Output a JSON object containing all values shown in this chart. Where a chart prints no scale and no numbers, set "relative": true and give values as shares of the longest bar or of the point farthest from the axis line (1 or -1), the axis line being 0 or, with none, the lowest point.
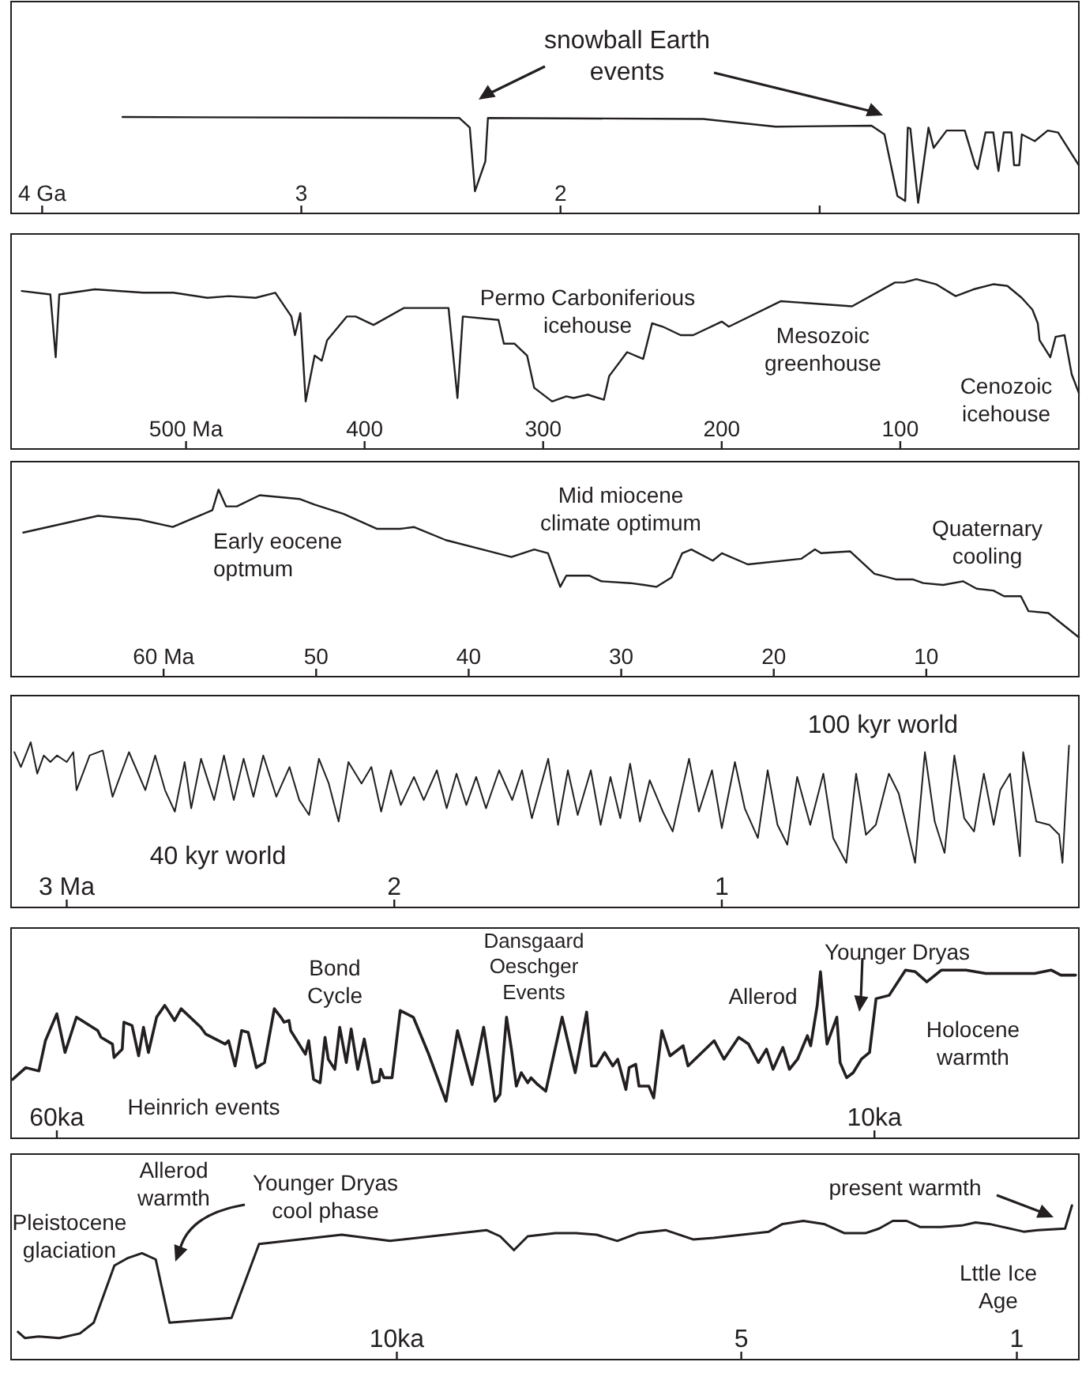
{
  "chart_data": [
    {
      "type": "line",
      "relative": true,
      "xlim": [
        4.12,
        0
      ],
      "xticks": [
        {
          "value": 4,
          "label": "4 Ga"
        },
        3,
        2,
        {
          "value": 1,
          "label": null
        }
      ],
      "annotations": [
        "snowball Earth events"
      ],
      "x": [
        3.69,
        2.39,
        2.35,
        2.33,
        2.29,
        2.28,
        1.45,
        1.17,
        0.8,
        0.75,
        0.7,
        0.67,
        0.66,
        0.65,
        0.62,
        0.58,
        0.56,
        0.51,
        0.44,
        0.4,
        0.39,
        0.36,
        0.33,
        0.31,
        0.29,
        0.26,
        0.25,
        0.23,
        0.22,
        0.17,
        0.12,
        0.08,
        0.0
      ],
      "series": [
        {
          "color": "#231f20",
          "values": [
            1.0,
            0.99,
            0.89,
            0.23,
            0.54,
            0.99,
            0.98,
            0.9,
            0.91,
            0.82,
            0.18,
            0.13,
            0.89,
            0.88,
            0.11,
            0.89,
            0.68,
            0.86,
            0.86,
            0.5,
            0.46,
            0.84,
            0.84,
            0.44,
            0.84,
            0.84,
            0.5,
            0.5,
            0.82,
            0.75,
            0.86,
            0.84,
            0.5
          ]
        }
      ]
    },
    {
      "type": "line",
      "relative": true,
      "xlim": [
        598,
        0
      ],
      "xticks": [
        {
          "value": 500,
          "label": "500 Ma"
        },
        400,
        300,
        200,
        100
      ],
      "annotations": [
        "Permo Carboniferious icehouse",
        "Mesozoic greenhouse",
        "Cenozoic icehouse"
      ],
      "x": [
        592,
        576,
        573,
        571,
        551,
        524,
        507,
        488,
        476,
        461,
        450,
        441,
        439,
        436,
        433,
        428,
        424,
        421,
        410,
        405,
        395,
        378,
        353,
        348,
        345,
        325,
        322,
        316,
        309,
        305,
        295,
        287,
        283,
        275,
        266,
        263,
        253,
        244,
        239,
        233,
        223,
        216,
        200,
        196,
        167,
        127,
        103,
        98,
        91,
        80,
        69,
        59,
        48,
        40,
        32,
        26,
        23,
        22,
        16,
        13,
        8,
        4,
        0
      ],
      "series": [
        {
          "color": "#231f20",
          "values": [
            0.93,
            0.91,
            0.54,
            0.91,
            0.94,
            0.92,
            0.92,
            0.89,
            0.9,
            0.89,
            0.92,
            0.78,
            0.67,
            0.8,
            0.28,
            0.55,
            0.52,
            0.64,
            0.78,
            0.78,
            0.73,
            0.83,
            0.83,
            0.3,
            0.78,
            0.76,
            0.62,
            0.62,
            0.55,
            0.36,
            0.28,
            0.31,
            0.3,
            0.32,
            0.29,
            0.43,
            0.57,
            0.53,
            0.74,
            0.72,
            0.67,
            0.67,
            0.75,
            0.72,
            0.87,
            0.84,
            0.98,
            0.98,
            1.0,
            0.97,
            0.9,
            0.94,
            0.97,
            0.96,
            0.89,
            0.82,
            0.74,
            0.64,
            0.54,
            0.66,
            0.67,
            0.44,
            0.33
          ]
        }
      ]
    },
    {
      "type": "line",
      "relative": true,
      "xlim": [
        70,
        0
      ],
      "xticks": [
        {
          "value": 60,
          "label": "60 Ma"
        },
        50,
        40,
        30,
        20,
        10
      ],
      "annotations": [
        "Early eocene optmum",
        "Mid miocene climate optimum",
        "Quaternary cooling"
      ],
      "x": [
        69.2,
        64.3,
        61.6,
        59.4,
        56.8,
        56.4,
        55.9,
        55.2,
        53.7,
        51.1,
        50.1,
        48.2,
        46.0,
        44.5,
        43.6,
        41.5,
        39.1,
        37.2,
        35.7,
        34.8,
        34.0,
        33.6,
        32.1,
        31.3,
        29.4,
        28.5,
        27.7,
        26.7,
        26.0,
        25.4,
        24.0,
        23.4,
        21.7,
        18.2,
        17.3,
        16.9,
        15.0,
        13.4,
        12.0,
        10.9,
        10.2,
        8.9,
        7.6,
        6.7,
        5.6,
        4.9,
        3.8,
        3.3,
        2.0,
        0.0
      ],
      "series": [
        {
          "color": "#231f20",
          "values": [
            0.77,
            0.86,
            0.84,
            0.8,
            0.89,
            1.0,
            0.91,
            0.91,
            0.97,
            0.95,
            0.92,
            0.87,
            0.79,
            0.79,
            0.8,
            0.73,
            0.68,
            0.64,
            0.68,
            0.66,
            0.48,
            0.54,
            0.54,
            0.51,
            0.5,
            0.49,
            0.48,
            0.53,
            0.66,
            0.68,
            0.62,
            0.66,
            0.6,
            0.63,
            0.68,
            0.66,
            0.67,
            0.55,
            0.52,
            0.52,
            0.5,
            0.49,
            0.51,
            0.47,
            0.46,
            0.43,
            0.43,
            0.35,
            0.34,
            0.21
          ]
        }
      ]
    },
    {
      "type": "line",
      "relative": true,
      "xlim": [
        3.17,
        -0.09
      ],
      "xticks": [
        {
          "value": 3,
          "label": "3 Ma"
        },
        2,
        1
      ],
      "annotations": [
        "100 kyr world",
        "40 kyr world"
      ],
      "x": [
        3.16,
        3.14,
        3.11,
        3.09,
        3.07,
        3.05,
        3.03,
        3.0,
        2.98,
        2.97,
        2.93,
        2.89,
        2.86,
        2.81,
        2.76,
        2.73,
        2.7,
        2.67,
        2.64,
        2.62,
        2.59,
        2.55,
        2.52,
        2.49,
        2.46,
        2.43,
        2.4,
        2.36,
        2.32,
        2.29,
        2.26,
        2.23,
        2.2,
        2.17,
        2.14,
        2.1,
        2.07,
        2.04,
        2.01,
        1.98,
        1.94,
        1.91,
        1.87,
        1.84,
        1.81,
        1.78,
        1.75,
        1.72,
        1.68,
        1.64,
        1.61,
        1.58,
        1.53,
        1.5,
        1.47,
        1.44,
        1.4,
        1.37,
        1.34,
        1.31,
        1.28,
        1.25,
        1.22,
        1.18,
        1.15,
        1.1,
        1.07,
        1.03,
        1.0,
        0.96,
        0.93,
        0.89,
        0.86,
        0.83,
        0.8,
        0.77,
        0.73,
        0.69,
        0.66,
        0.62,
        0.59,
        0.56,
        0.53,
        0.49,
        0.46,
        0.41,
        0.38,
        0.35,
        0.32,
        0.29,
        0.26,
        0.23,
        0.2,
        0.17,
        0.15,
        0.12,
        0.09,
        0.08,
        0.04,
        0.0,
        -0.03,
        -0.04,
        -0.06
      ],
      "series": [
        {
          "color": "#231f20",
          "values": [
            0.94,
            0.85,
            1.0,
            0.81,
            0.92,
            0.88,
            0.92,
            0.88,
            0.94,
            0.71,
            0.92,
            0.95,
            0.67,
            0.94,
            0.71,
            0.92,
            0.71,
            0.58,
            0.88,
            0.6,
            0.9,
            0.65,
            0.92,
            0.65,
            0.9,
            0.67,
            0.92,
            0.67,
            0.85,
            0.65,
            0.56,
            0.9,
            0.75,
            0.52,
            0.88,
            0.75,
            0.85,
            0.58,
            0.83,
            0.62,
            0.79,
            0.65,
            0.83,
            0.6,
            0.81,
            0.62,
            0.79,
            0.6,
            0.83,
            0.65,
            0.83,
            0.54,
            0.9,
            0.5,
            0.83,
            0.56,
            0.83,
            0.5,
            0.79,
            0.54,
            0.87,
            0.52,
            0.77,
            0.58,
            0.46,
            0.9,
            0.58,
            0.83,
            0.48,
            0.88,
            0.6,
            0.42,
            0.83,
            0.5,
            0.38,
            0.79,
            0.5,
            0.81,
            0.42,
            0.27,
            0.81,
            0.44,
            0.5,
            0.81,
            0.69,
            0.27,
            0.94,
            0.52,
            0.33,
            0.92,
            0.54,
            0.46,
            0.81,
            0.5,
            0.71,
            0.81,
            0.31,
            0.94,
            0.52,
            0.5,
            0.44,
            0.27,
            0.98
          ]
        }
      ]
    },
    {
      "type": "line",
      "relative": true,
      "xlim": [
        62.8,
        -2.5
      ],
      "xticks": [
        {
          "value": 60,
          "label": "60ka"
        },
        {
          "value": 10,
          "label": "10ka"
        }
      ],
      "annotations": [
        "Bond Cycle",
        "Dansgaard Oeschger Events",
        "Allerod",
        "Younger Dryas",
        "Heinrich events",
        "Holocene warmth"
      ],
      "x": [
        62.7,
        61.9,
        61.1,
        60.7,
        60.0,
        59.5,
        58.8,
        57.5,
        57.3,
        56.6,
        56.5,
        56.0,
        55.9,
        55.4,
        55.0,
        54.7,
        54.4,
        53.9,
        53.4,
        52.8,
        52.4,
        51.2,
        50.9,
        49.7,
        49.5,
        49.1,
        48.7,
        48.3,
        47.8,
        47.3,
        46.7,
        46.3,
        46.1,
        45.8,
        45.7,
        44.8,
        44.6,
        44.3,
        43.9,
        43.6,
        43.4,
        43.0,
        42.7,
        42.3,
        42.0,
        41.6,
        41.2,
        40.7,
        40.3,
        40.2,
        40.0,
        39.5,
        39.0,
        38.2,
        37.3,
        36.2,
        35.5,
        34.6,
        33.9,
        33.2,
        32.9,
        32.5,
        32.2,
        31.9,
        31.6,
        31.2,
        31.0,
        30.6,
        30.1,
        29.1,
        28.3,
        27.6,
        27.3,
        27.0,
        26.5,
        26.0,
        25.7,
        25.2,
        25.0,
        24.6,
        24.4,
        23.8,
        23.5,
        23.0,
        22.5,
        21.7,
        21.4,
        19.8,
        19.2,
        18.3,
        17.7,
        17.1,
        16.6,
        16.2,
        15.6,
        15.2,
        14.7,
        14.1,
        13.9,
        13.5,
        13.3,
        12.9,
        12.3,
        12.1,
        11.7,
        11.3,
        10.8,
        10.3,
        9.9,
        9.1,
        8.1,
        7.5,
        6.8,
        5.9,
        4.4,
        3.2,
        0.2,
        -0.8,
        -1.4,
        -2.3
      ],
      "series": [
        {
          "color": "#231f20",
          "values": [
            0.35,
            0.42,
            0.4,
            0.58,
            0.74,
            0.51,
            0.72,
            0.64,
            0.6,
            0.56,
            0.48,
            0.53,
            0.69,
            0.67,
            0.49,
            0.66,
            0.51,
            0.72,
            0.79,
            0.7,
            0.77,
            0.66,
            0.62,
            0.56,
            0.58,
            0.43,
            0.64,
            0.63,
            0.42,
            0.45,
            0.77,
            0.72,
            0.69,
            0.7,
            0.64,
            0.5,
            0.58,
            0.35,
            0.33,
            0.6,
            0.47,
            0.41,
            0.66,
            0.45,
            0.65,
            0.41,
            0.59,
            0.33,
            0.34,
            0.41,
            0.36,
            0.36,
            0.76,
            0.72,
            0.51,
            0.22,
            0.64,
            0.32,
            0.66,
            0.22,
            0.26,
            0.72,
            0.53,
            0.31,
            0.39,
            0.33,
            0.36,
            0.32,
            0.28,
            0.72,
            0.39,
            0.75,
            0.43,
            0.43,
            0.51,
            0.43,
            0.47,
            0.29,
            0.42,
            0.44,
            0.31,
            0.31,
            0.24,
            0.64,
            0.49,
            0.55,
            0.43,
            0.58,
            0.47,
            0.6,
            0.56,
            0.45,
            0.53,
            0.41,
            0.54,
            0.41,
            0.47,
            0.61,
            0.55,
            0.79,
            0.99,
            0.56,
            0.72,
            0.45,
            0.36,
            0.39,
            0.47,
            0.51,
            0.83,
            0.85,
            1.0,
            0.99,
            0.93,
            1.0,
            1.0,
            0.98,
            0.98,
            1.0,
            0.97,
            0.97
          ]
        }
      ]
    },
    {
      "type": "line",
      "relative": true,
      "xlim": [
        15.6,
        0.1
      ],
      "xticks": [
        {
          "value": 10,
          "label": "10ka"
        },
        5,
        1
      ],
      "annotations": [
        "Pleistocene glaciation",
        "Allerod warmth",
        "Younger Dryas cool phase",
        "present warmth",
        "Lttle Ice Age"
      ],
      "x": [
        15.5,
        15.4,
        15.2,
        14.9,
        14.6,
        14.4,
        14.1,
        13.9,
        13.7,
        13.5,
        13.3,
        12.4,
        12.0,
        10.8,
        10.1,
        8.7,
        8.5,
        8.3,
        8.1,
        7.7,
        7.4,
        7.1,
        6.8,
        6.5,
        6.1,
        5.7,
        5.4,
        4.6,
        4.4,
        4.1,
        3.8,
        3.5,
        3.2,
        3.0,
        2.8,
        2.6,
        2.4,
        2.1,
        1.8,
        1.6,
        1.4,
        0.9,
        0.7,
        0.3,
        0.2
      ],
      "series": [
        {
          "color": "#231f20",
          "values": [
            0.18,
            0.14,
            0.15,
            0.14,
            0.17,
            0.24,
            0.61,
            0.66,
            0.69,
            0.65,
            0.24,
            0.27,
            0.75,
            0.81,
            0.77,
            0.84,
            0.8,
            0.71,
            0.8,
            0.82,
            0.82,
            0.81,
            0.77,
            0.82,
            0.84,
            0.78,
            0.79,
            0.83,
            0.88,
            0.9,
            0.88,
            0.82,
            0.82,
            0.85,
            0.9,
            0.9,
            0.86,
            0.86,
            0.87,
            0.89,
            0.88,
            0.83,
            0.84,
            0.85,
            1.0
          ]
        }
      ]
    }
  ]
}
